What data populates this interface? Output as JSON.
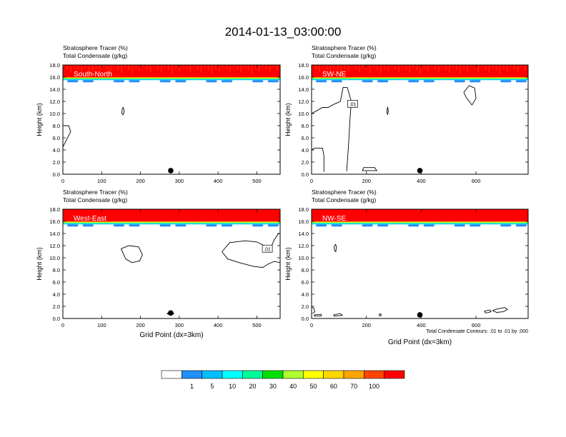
{
  "title": "2014-01-13_03:00:00",
  "colors": {
    "contour": "#000000",
    "background": "#ffffff"
  },
  "colorbar": {
    "labels": [
      "1",
      "5",
      "10",
      "20",
      "30",
      "40",
      "50",
      "60",
      "70",
      "100"
    ],
    "colors": [
      "#ffffff",
      "#1e90ff",
      "#00bfff",
      "#00ffff",
      "#00fa9a",
      "#00e000",
      "#adff2f",
      "#ffff00",
      "#ffd700",
      "#ffa500",
      "#ff4500",
      "#ff0000"
    ]
  },
  "chart_data": [
    {
      "type": "heatmap",
      "label_line1": "Stratosphere Tracer   (%)",
      "label_line2": "Total Condensate   (g/kg)",
      "panel_label": "South-North",
      "ylabel": "Height (km)",
      "xlabel": "",
      "xlim": [
        0,
        560
      ],
      "ylim": [
        0,
        18
      ],
      "xticks": [
        0,
        100,
        200,
        300,
        400,
        500
      ],
      "yticks": [
        "0.0",
        "2.0",
        "4.0",
        "6.0",
        "8.0",
        "10.0",
        "12.0",
        "14.0",
        "16.0",
        "18.0"
      ],
      "tracer_base_km": 15.6,
      "contours": [
        [
          [
            0,
            4.5
          ],
          [
            8,
            5.5
          ],
          [
            20,
            7
          ],
          [
            15,
            8
          ],
          [
            3,
            8
          ]
        ],
        [
          [
            152,
            10
          ],
          [
            155,
            9.8
          ],
          [
            158,
            10.3
          ],
          [
            156,
            11
          ],
          [
            153,
            10.8
          ],
          [
            152,
            10
          ]
        ]
      ],
      "contour_labels": [],
      "marker": [
        278,
        0.6
      ]
    },
    {
      "type": "heatmap",
      "label_line1": "Stratosphere Tracer   (%)",
      "label_line2": "Total Condensate   (g/kg)",
      "panel_label": "SW-NE",
      "ylabel": "Height (km)",
      "xlabel": "",
      "xlim": [
        0,
        790
      ],
      "ylim": [
        0,
        18
      ],
      "xticks": [
        0,
        200,
        400,
        600
      ],
      "yticks": [
        "0.0",
        "2.0",
        "4.0",
        "6.0",
        "8.0",
        "10.0",
        "12.0",
        "14.0",
        "16.0",
        "18.0"
      ],
      "tracer_base_km": 15.6,
      "contours": [
        [
          [
            0,
            10
          ],
          [
            20,
            10.5
          ],
          [
            40,
            11
          ],
          [
            60,
            11
          ],
          [
            80,
            11.5
          ],
          [
            105,
            12
          ],
          [
            115,
            14.3
          ],
          [
            130,
            14.3
          ],
          [
            145,
            12
          ],
          [
            140,
            9
          ],
          [
            135,
            5
          ],
          [
            128,
            0.5
          ]
        ],
        [
          [
            0,
            4
          ],
          [
            10,
            4.3
          ],
          [
            40,
            4.3
          ],
          [
            45,
            3
          ],
          [
            45,
            0.4
          ]
        ],
        [
          [
            185,
            0.6
          ],
          [
            190,
            1.1
          ],
          [
            230,
            1.1
          ],
          [
            238,
            0.6
          ],
          [
            185,
            0.6
          ]
        ],
        [
          [
            275,
            10.2
          ],
          [
            277,
            9.8
          ],
          [
            280,
            10.3
          ],
          [
            278,
            11
          ],
          [
            276,
            10.8
          ],
          [
            275,
            10.2
          ]
        ],
        [
          [
            555,
            13.5
          ],
          [
            575,
            14.6
          ],
          [
            595,
            14.2
          ],
          [
            600,
            12.5
          ],
          [
            585,
            11.4
          ],
          [
            565,
            12.6
          ],
          [
            555,
            13.5
          ]
        ]
      ],
      "contour_labels": [
        {
          "x": 150,
          "y": 11.6,
          "text": ".01"
        }
      ],
      "marker": [
        395,
        0.6
      ]
    },
    {
      "type": "heatmap",
      "label_line1": "Stratosphere Tracer   (%)",
      "label_line2": "Total Condensate   (g/kg)",
      "panel_label": "West-East",
      "ylabel": "Height (km)",
      "xlabel": "Grid Point (dx=3km)",
      "xlim": [
        0,
        560
      ],
      "ylim": [
        0,
        18
      ],
      "xticks": [
        0,
        100,
        200,
        300,
        400,
        500
      ],
      "yticks": [
        "0.0",
        "2.0",
        "4.0",
        "6.0",
        "8.0",
        "10.0",
        "12.0",
        "14.0",
        "16.0",
        "18.0"
      ],
      "tracer_base_km": 15.6,
      "contours": [
        [
          [
            150,
            11.5
          ],
          [
            170,
            12
          ],
          [
            195,
            11.8
          ],
          [
            205,
            10.5
          ],
          [
            198,
            9.5
          ],
          [
            178,
            9.2
          ],
          [
            162,
            9.8
          ],
          [
            150,
            11.5
          ]
        ],
        [
          [
            410,
            11
          ],
          [
            430,
            12.5
          ],
          [
            470,
            12.8
          ],
          [
            500,
            12.6
          ],
          [
            525,
            11.8
          ],
          [
            535,
            11.5
          ],
          [
            545,
            13
          ],
          [
            556,
            14
          ],
          [
            560,
            14
          ]
        ],
        [
          [
            410,
            11
          ],
          [
            425,
            9.8
          ],
          [
            455,
            9.2
          ],
          [
            490,
            8.6
          ],
          [
            515,
            8.4
          ],
          [
            530,
            9
          ],
          [
            545,
            9.4
          ],
          [
            560,
            9.2
          ]
        ],
        [
          [
            268,
            0.8
          ],
          [
            278,
            1.1
          ],
          [
            286,
            0.8
          ],
          [
            278,
            0.5
          ],
          [
            268,
            0.8
          ]
        ]
      ],
      "contour_labels": [
        {
          "x": 527,
          "y": 11.5,
          "text": ".01"
        }
      ],
      "marker": [
        278,
        0.9
      ]
    },
    {
      "type": "heatmap",
      "label_line1": "Stratosphere Tracer   (%)",
      "label_line2": "Total Condensate   (g/kg)",
      "panel_label": "NW-SE",
      "ylabel": "Height (km)",
      "xlabel": "Grid Point (dx=3km)",
      "xlim": [
        0,
        790
      ],
      "ylim": [
        0,
        18
      ],
      "xticks": [
        0,
        200,
        400,
        600
      ],
      "yticks": [
        "0.0",
        "2.0",
        "4.0",
        "6.0",
        "8.0",
        "10.0",
        "12.0",
        "14.0",
        "16.0",
        "18.0"
      ],
      "tracer_base_km": 15.6,
      "contours": [
        [
          [
            82,
            11.8
          ],
          [
            87,
            12.2
          ],
          [
            91,
            11.8
          ],
          [
            88,
            11
          ],
          [
            84,
            11.2
          ],
          [
            82,
            11.8
          ]
        ],
        [
          [
            0,
            1.9
          ],
          [
            8,
            1.7
          ],
          [
            12,
            1.1
          ],
          [
            4,
            0.8
          ]
        ],
        [
          [
            10,
            0.6
          ],
          [
            35,
            0.7
          ],
          [
            35,
            0.4
          ],
          [
            10,
            0.4
          ],
          [
            10,
            0.6
          ]
        ],
        [
          [
            80,
            0.6
          ],
          [
            105,
            0.8
          ],
          [
            112,
            0.5
          ],
          [
            82,
            0.4
          ],
          [
            80,
            0.6
          ]
        ],
        [
          [
            245,
            0.6
          ],
          [
            250,
            0.8
          ],
          [
            255,
            0.6
          ],
          [
            250,
            0.4
          ],
          [
            245,
            0.6
          ]
        ],
        [
          [
            630,
            1.2
          ],
          [
            650,
            1.4
          ],
          [
            655,
            1.1
          ],
          [
            635,
            0.9
          ],
          [
            630,
            1.2
          ]
        ],
        [
          [
            660,
            1.3
          ],
          [
            680,
            1.6
          ],
          [
            705,
            1.8
          ],
          [
            715,
            1.5
          ],
          [
            700,
            1.1
          ],
          [
            675,
            1.0
          ],
          [
            660,
            1.3
          ]
        ]
      ],
      "contour_labels": [],
      "marker": [
        395,
        0.6
      ],
      "footnote": "Total Condensate Contours: .01 to .01 by .000"
    }
  ]
}
